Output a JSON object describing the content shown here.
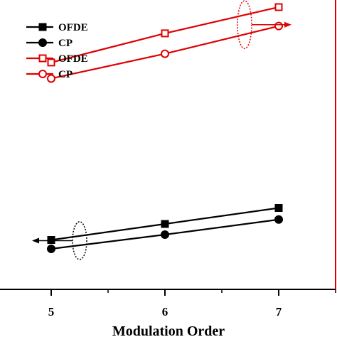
{
  "chart_data": {
    "type": "line",
    "title": "",
    "xlabel": "Modulation Order",
    "x": [
      5,
      6,
      7
    ],
    "xticks": [
      "5",
      "6",
      "7"
    ],
    "xlim": [
      4.55,
      7.5
    ],
    "axes": {
      "left": {
        "color": "#000000",
        "ylim": [
          0,
          1
        ]
      },
      "right": {
        "color": "#e00000",
        "ylim": [
          0,
          1
        ]
      }
    },
    "series": [
      {
        "name": "OFDE",
        "axis": "left",
        "marker": "filled-square",
        "color": "#000000",
        "values": [
          0.3,
          0.48,
          0.66
        ]
      },
      {
        "name": "CP",
        "axis": "left",
        "marker": "filled-circle",
        "color": "#000000",
        "values": [
          0.2,
          0.36,
          0.53
        ]
      },
      {
        "name": "OFDE",
        "axis": "right",
        "marker": "open-square",
        "color": "#e00000",
        "values": [
          0.62,
          0.82,
          1.0
        ]
      },
      {
        "name": "CP",
        "axis": "right",
        "marker": "open-circle",
        "color": "#e00000",
        "values": [
          0.51,
          0.68,
          0.87
        ]
      }
    ],
    "annotations": [
      {
        "type": "axis-pointer",
        "target": "left",
        "series": [
          "OFDE",
          "CP"
        ],
        "color": "#000000"
      },
      {
        "type": "axis-pointer",
        "target": "right",
        "series": [
          "OFDE",
          "CP"
        ],
        "color": "#e00000"
      }
    ],
    "legend": {
      "position": "top-left"
    },
    "grid": false
  }
}
